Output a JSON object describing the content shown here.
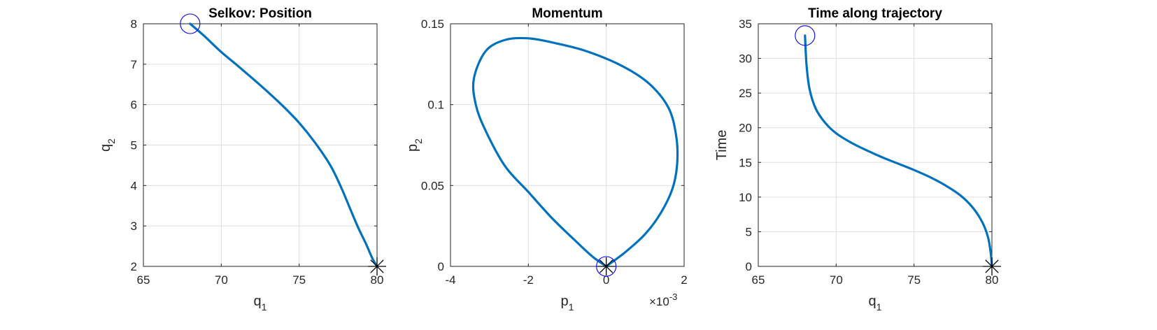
{
  "style": {
    "line_color": "#0072BD",
    "start_marker_color": "#0000FF",
    "end_marker_color": "#000000",
    "grid": true
  },
  "chart_data": [
    {
      "type": "line",
      "title": "Selkov: Position",
      "xlabel": {
        "base": "q",
        "sub": "1"
      },
      "ylabel": {
        "base": "q",
        "sub": "2"
      },
      "xlim": [
        65,
        80
      ],
      "ylim": [
        2,
        8
      ],
      "xticks": [
        65,
        70,
        75,
        80
      ],
      "yticks": [
        2,
        3,
        4,
        5,
        6,
        7,
        8
      ],
      "x": [
        68.0,
        68.9,
        70.0,
        71.0,
        72.0,
        73.0,
        74.0,
        75.0,
        76.0,
        77.0,
        77.7,
        78.3,
        78.8,
        79.3,
        79.7,
        80.0
      ],
      "y": [
        8.0,
        7.7,
        7.3,
        6.98,
        6.65,
        6.31,
        5.95,
        5.55,
        5.07,
        4.5,
        3.95,
        3.4,
        2.95,
        2.55,
        2.2,
        2.0
      ],
      "start_marker": {
        "x": 68.0,
        "y": 8.0,
        "shape": "circle"
      },
      "end_marker": {
        "x": 80.0,
        "y": 2.0,
        "shape": "star"
      }
    },
    {
      "type": "line",
      "title": "Momentum",
      "xlabel": {
        "base": "p",
        "sub": "1"
      },
      "ylabel": {
        "base": "p",
        "sub": "2"
      },
      "xlim": [
        -4,
        2
      ],
      "ylim": [
        0,
        0.15
      ],
      "xticks": [
        -4,
        -2,
        0,
        2
      ],
      "yticks": [
        0,
        0.05,
        0.1,
        0.15
      ],
      "x_exponent_label": "×10^-3",
      "x_units_label": "×10",
      "x_exponent": "-3",
      "x": [
        0.0,
        0.5,
        1.0,
        1.4,
        1.7,
        1.82,
        1.8,
        1.6,
        1.1,
        0.4,
        -0.5,
        -1.3,
        -2.0,
        -2.6,
        -3.1,
        -3.4,
        -3.35,
        -3.1,
        -2.6,
        -2.0,
        -1.4,
        -0.8,
        -0.35,
        0.0
      ],
      "y": [
        0.0,
        0.009,
        0.02,
        0.033,
        0.048,
        0.063,
        0.08,
        0.098,
        0.113,
        0.124,
        0.133,
        0.138,
        0.141,
        0.14,
        0.133,
        0.116,
        0.1,
        0.084,
        0.062,
        0.046,
        0.03,
        0.016,
        0.006,
        0.0
      ],
      "start_marker": {
        "x": 0.0,
        "y": 0.0,
        "shape": "circle"
      },
      "end_marker": {
        "x": 0.0,
        "y": 0.0,
        "shape": "star"
      }
    },
    {
      "type": "line",
      "title": "Time along trajectory",
      "xlabel": {
        "base": "q",
        "sub": "1"
      },
      "ylabel": {
        "base": "Time",
        "sub": ""
      },
      "xlim": [
        65,
        80
      ],
      "ylim": [
        0,
        35
      ],
      "xticks": [
        65,
        70,
        75,
        80
      ],
      "yticks": [
        0,
        5,
        10,
        15,
        20,
        25,
        30,
        35
      ],
      "x": [
        68.0,
        68.1,
        68.3,
        68.7,
        69.3,
        70.0,
        71.0,
        72.0,
        73.0,
        74.0,
        75.0,
        76.0,
        77.0,
        78.0,
        78.8,
        79.4,
        79.75,
        79.92,
        80.0
      ],
      "y": [
        33.3,
        29.0,
        25.5,
        22.7,
        20.7,
        19.2,
        17.8,
        16.7,
        15.7,
        14.8,
        13.9,
        12.9,
        11.7,
        10.2,
        8.4,
        6.3,
        4.2,
        2.0,
        0.0
      ],
      "start_marker": {
        "x": 68.0,
        "y": 33.3,
        "shape": "circle"
      },
      "end_marker": {
        "x": 80.0,
        "y": 0.0,
        "shape": "star"
      }
    }
  ]
}
